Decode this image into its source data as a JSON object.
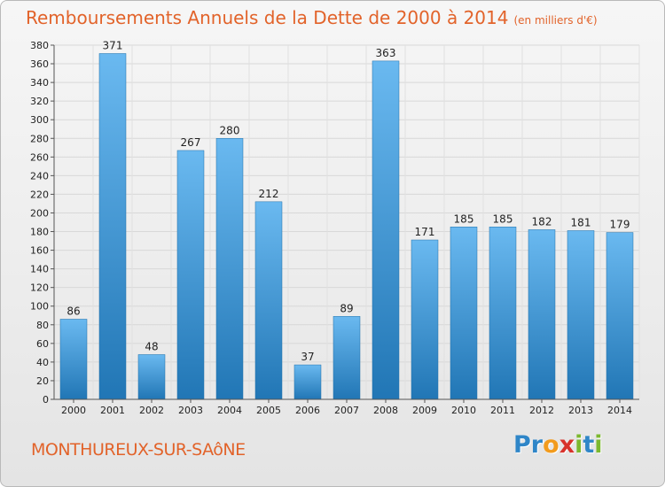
{
  "header": {
    "title": "Remboursements Annuels de la Dette de 2000 à 2014",
    "unit": "(en milliers d'€)"
  },
  "footer": {
    "town": "MONTHUREUX-SUR-SAôNE",
    "logo_letters": [
      "P",
      "r",
      "o",
      "x",
      "i",
      "t",
      "i"
    ]
  },
  "colors": {
    "title": "#e2632a",
    "bar_top": "#6ab9f0",
    "bar_bottom": "#2176b5"
  },
  "chart_data": {
    "type": "bar",
    "categories": [
      "2000",
      "2001",
      "2002",
      "2003",
      "2004",
      "2005",
      "2006",
      "2007",
      "2008",
      "2009",
      "2010",
      "2011",
      "2012",
      "2013",
      "2014"
    ],
    "values": [
      86,
      371,
      48,
      267,
      280,
      212,
      37,
      89,
      363,
      171,
      185,
      185,
      182,
      181,
      179
    ],
    "title": "Remboursements Annuels de la Dette de 2000 à 2014",
    "ylabel": "",
    "ylim": [
      0,
      380
    ],
    "ytick_step": 20,
    "grid": true,
    "legend": "none"
  }
}
